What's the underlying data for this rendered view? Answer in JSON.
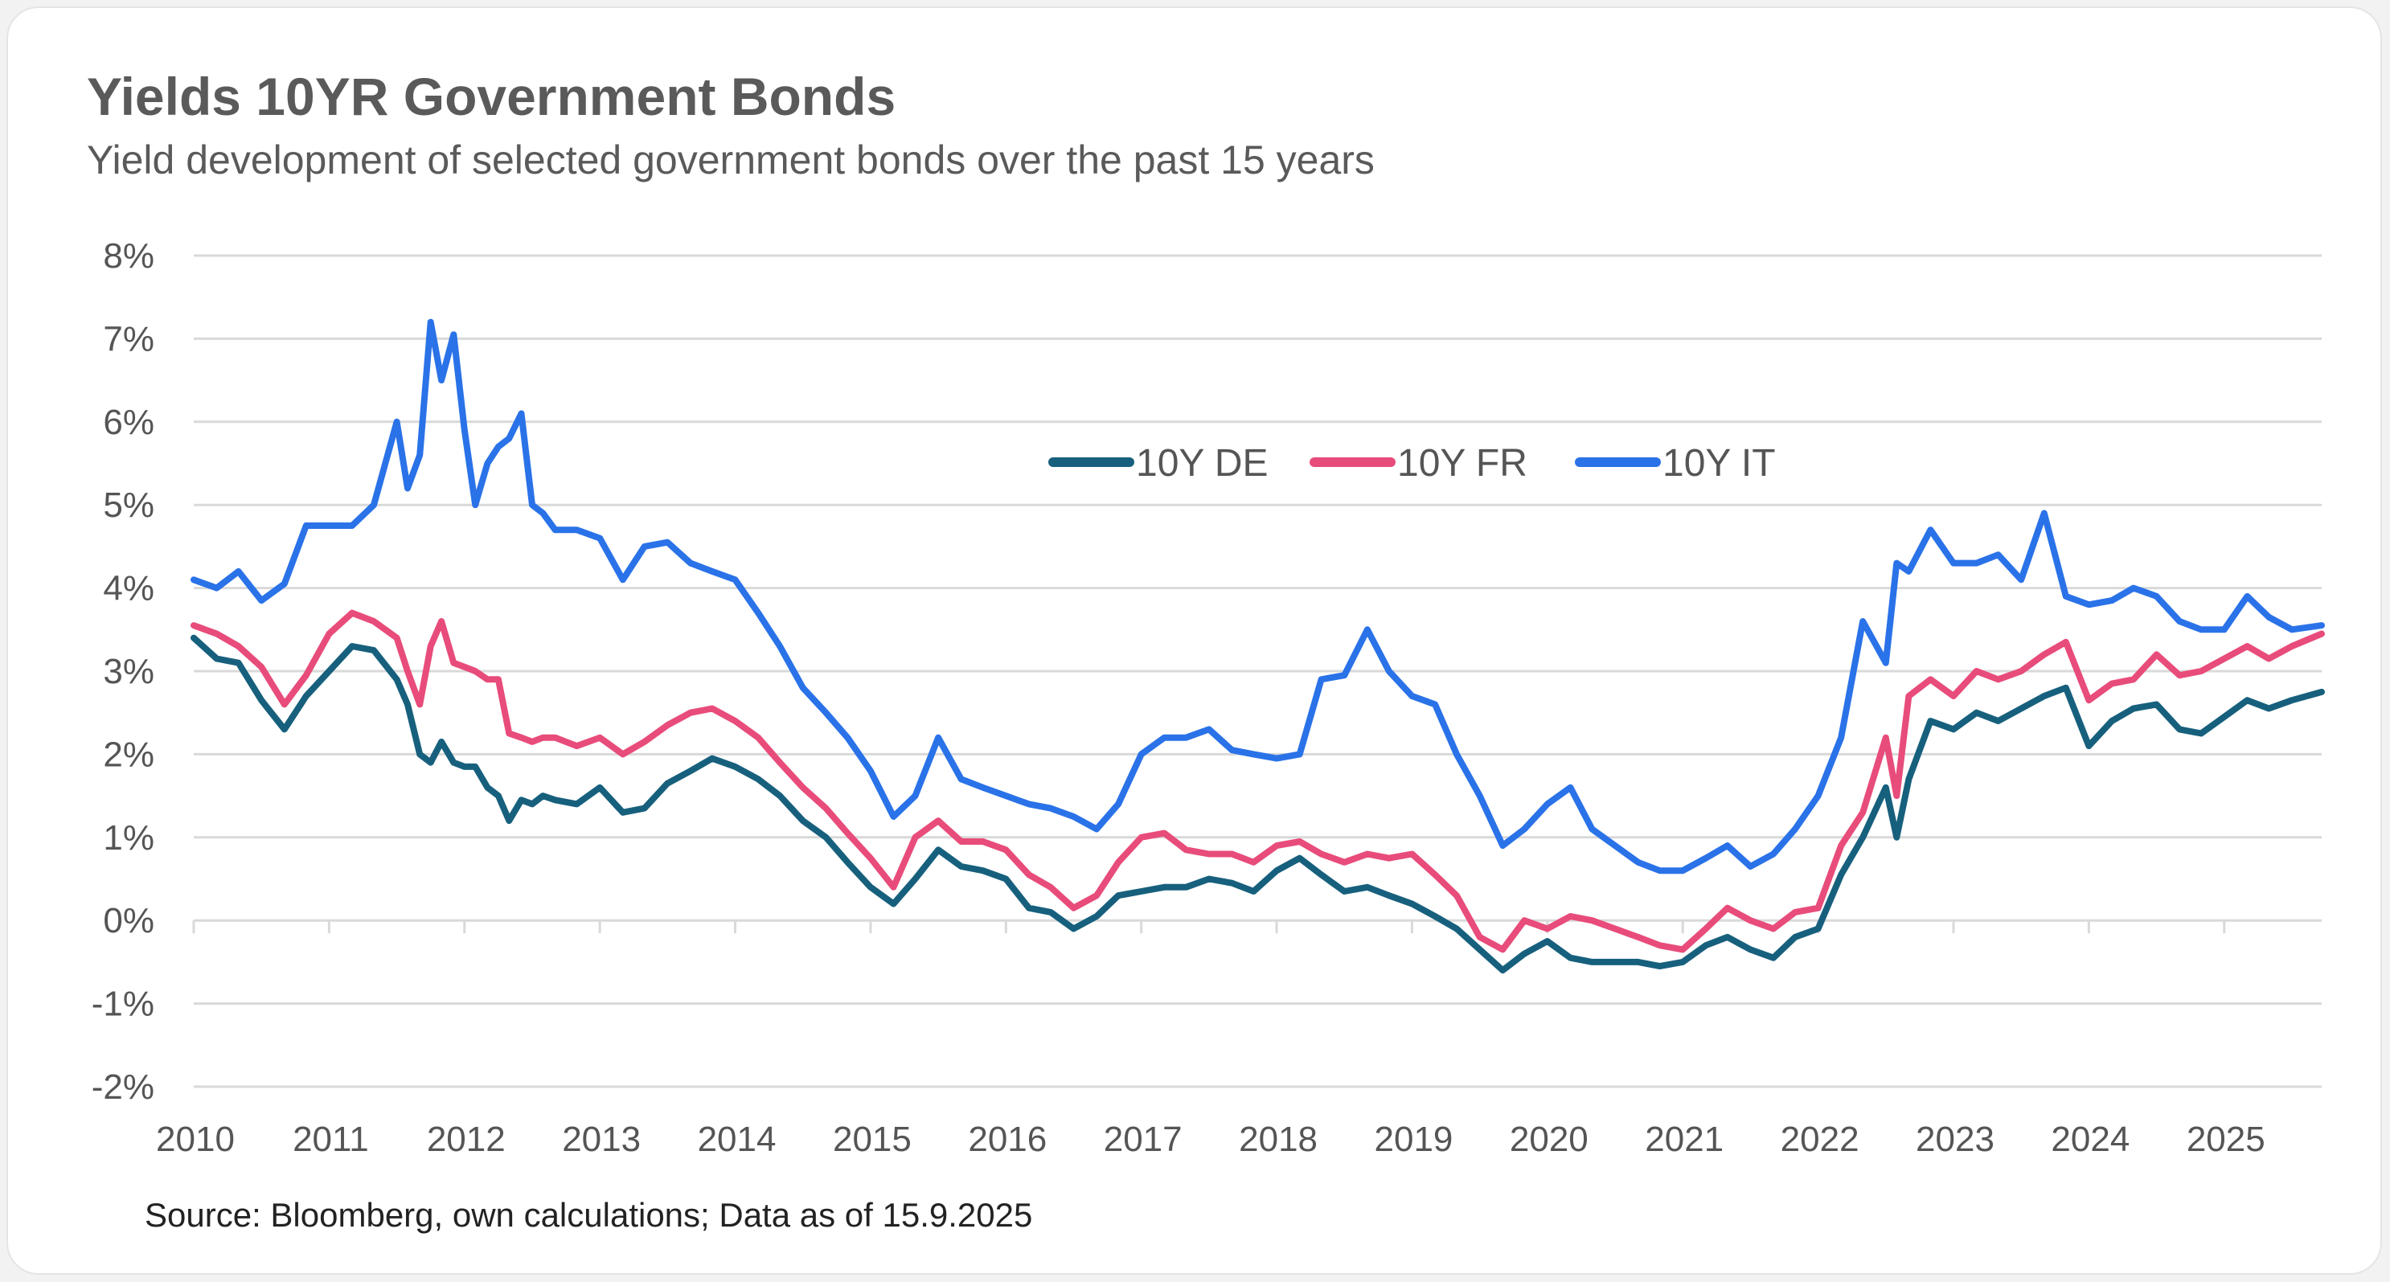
{
  "header": {
    "title": "Yields 10YR Government Bonds",
    "subtitle": "Yield development of selected government bonds over the past 15 years"
  },
  "footer": {
    "source": "Source: Bloomberg, own calculations; Data as of 15.9.2025"
  },
  "chart_data": {
    "type": "line",
    "title": "Yields 10YR Government Bonds",
    "subtitle": "Yield development of selected government bonds over the past 15 years",
    "xlabel": "",
    "ylabel": "",
    "xlim": [
      2010.0,
      2025.72
    ],
    "ylim": [
      -2,
      8
    ],
    "y_ticks": [
      -2,
      -1,
      0,
      1,
      2,
      3,
      4,
      5,
      6,
      7,
      8
    ],
    "y_tick_labels": [
      "-2%",
      "-1%",
      "0%",
      "1%",
      "2%",
      "3%",
      "4%",
      "5%",
      "6%",
      "7%",
      "8%"
    ],
    "x_ticks": [
      2010,
      2011,
      2012,
      2013,
      2014,
      2015,
      2016,
      2017,
      2018,
      2019,
      2020,
      2021,
      2022,
      2023,
      2024,
      2025
    ],
    "x_tick_labels": [
      "2010",
      "2011",
      "2012",
      "2013",
      "2014",
      "2015",
      "2016",
      "2017",
      "2018",
      "2019",
      "2020",
      "2021",
      "2022",
      "2023",
      "2024",
      "2025"
    ],
    "grid": true,
    "legend_position": "top-center",
    "x": [
      2010.0,
      2010.17,
      2010.33,
      2010.5,
      2010.67,
      2010.83,
      2011.0,
      2011.17,
      2011.33,
      2011.5,
      2011.58,
      2011.67,
      2011.75,
      2011.83,
      2011.92,
      2012.0,
      2012.08,
      2012.17,
      2012.25,
      2012.33,
      2012.42,
      2012.5,
      2012.58,
      2012.67,
      2012.83,
      2013.0,
      2013.17,
      2013.33,
      2013.5,
      2013.67,
      2013.83,
      2014.0,
      2014.17,
      2014.33,
      2014.5,
      2014.67,
      2014.83,
      2015.0,
      2015.17,
      2015.33,
      2015.5,
      2015.67,
      2015.83,
      2016.0,
      2016.17,
      2016.33,
      2016.5,
      2016.67,
      2016.83,
      2017.0,
      2017.17,
      2017.33,
      2017.5,
      2017.67,
      2017.83,
      2018.0,
      2018.17,
      2018.33,
      2018.5,
      2018.67,
      2018.83,
      2019.0,
      2019.17,
      2019.33,
      2019.5,
      2019.67,
      2019.83,
      2020.0,
      2020.17,
      2020.33,
      2020.5,
      2020.67,
      2020.83,
      2021.0,
      2021.17,
      2021.33,
      2021.5,
      2021.67,
      2021.83,
      2022.0,
      2022.17,
      2022.33,
      2022.5,
      2022.58,
      2022.67,
      2022.83,
      2023.0,
      2023.17,
      2023.33,
      2023.5,
      2023.67,
      2023.83,
      2024.0,
      2024.17,
      2024.33,
      2024.5,
      2024.67,
      2024.83,
      2025.0,
      2025.17,
      2025.33,
      2025.5,
      2025.72
    ],
    "series": [
      {
        "name": "10Y DE",
        "color": "#17607d",
        "values": [
          3.4,
          3.15,
          3.1,
          2.65,
          2.3,
          2.7,
          3.0,
          3.3,
          3.25,
          2.9,
          2.6,
          2.0,
          1.9,
          2.15,
          1.9,
          1.85,
          1.85,
          1.6,
          1.5,
          1.2,
          1.45,
          1.4,
          1.5,
          1.45,
          1.4,
          1.6,
          1.3,
          1.35,
          1.65,
          1.8,
          1.95,
          1.85,
          1.7,
          1.5,
          1.2,
          1.0,
          0.7,
          0.4,
          0.2,
          0.5,
          0.85,
          0.65,
          0.6,
          0.5,
          0.15,
          0.1,
          -0.1,
          0.05,
          0.3,
          0.35,
          0.4,
          0.4,
          0.5,
          0.45,
          0.35,
          0.6,
          0.75,
          0.55,
          0.35,
          0.4,
          0.3,
          0.2,
          0.05,
          -0.1,
          -0.35,
          -0.6,
          -0.4,
          -0.25,
          -0.45,
          -0.5,
          -0.5,
          -0.5,
          -0.55,
          -0.5,
          -0.3,
          -0.2,
          -0.35,
          -0.45,
          -0.2,
          -0.1,
          0.55,
          1.0,
          1.6,
          1.0,
          1.7,
          2.4,
          2.3,
          2.5,
          2.4,
          2.55,
          2.7,
          2.8,
          2.1,
          2.4,
          2.55,
          2.6,
          2.3,
          2.25,
          2.45,
          2.65,
          2.55,
          2.65,
          2.75
        ]
      },
      {
        "name": "10Y FR",
        "color": "#e84c7a",
        "values": [
          3.55,
          3.45,
          3.3,
          3.05,
          2.6,
          2.95,
          3.45,
          3.7,
          3.6,
          3.4,
          3.0,
          2.6,
          3.3,
          3.6,
          3.1,
          3.05,
          3.0,
          2.9,
          2.9,
          2.25,
          2.2,
          2.15,
          2.2,
          2.2,
          2.1,
          2.2,
          2.0,
          2.15,
          2.35,
          2.5,
          2.55,
          2.4,
          2.2,
          1.9,
          1.6,
          1.35,
          1.05,
          0.75,
          0.4,
          1.0,
          1.2,
          0.95,
          0.95,
          0.85,
          0.55,
          0.4,
          0.15,
          0.3,
          0.7,
          1.0,
          1.05,
          0.85,
          0.8,
          0.8,
          0.7,
          0.9,
          0.95,
          0.8,
          0.7,
          0.8,
          0.75,
          0.8,
          0.55,
          0.3,
          -0.2,
          -0.35,
          0.0,
          -0.1,
          0.05,
          0.0,
          -0.1,
          -0.2,
          -0.3,
          -0.35,
          -0.1,
          0.15,
          0.0,
          -0.1,
          0.1,
          0.15,
          0.9,
          1.3,
          2.2,
          1.5,
          2.7,
          2.9,
          2.7,
          3.0,
          2.9,
          3.0,
          3.2,
          3.35,
          2.65,
          2.85,
          2.9,
          3.2,
          2.95,
          3.0,
          3.15,
          3.3,
          3.15,
          3.3,
          3.45
        ]
      },
      {
        "name": "10Y IT",
        "color": "#2a72e8",
        "values": [
          4.1,
          4.0,
          4.2,
          3.85,
          4.05,
          4.75,
          4.75,
          4.75,
          5.0,
          6.0,
          5.2,
          5.6,
          7.2,
          6.5,
          7.05,
          5.9,
          5.0,
          5.5,
          5.7,
          5.8,
          6.1,
          5.0,
          4.9,
          4.7,
          4.7,
          4.6,
          4.1,
          4.5,
          4.55,
          4.3,
          4.2,
          4.1,
          3.7,
          3.3,
          2.8,
          2.5,
          2.2,
          1.8,
          1.25,
          1.5,
          2.2,
          1.7,
          1.6,
          1.5,
          1.4,
          1.35,
          1.25,
          1.1,
          1.4,
          2.0,
          2.2,
          2.2,
          2.3,
          2.05,
          2.0,
          1.95,
          2.0,
          2.9,
          2.95,
          3.5,
          3.0,
          2.7,
          2.6,
          2.0,
          1.5,
          0.9,
          1.1,
          1.4,
          1.6,
          1.1,
          0.9,
          0.7,
          0.6,
          0.6,
          0.75,
          0.9,
          0.65,
          0.8,
          1.1,
          1.5,
          2.2,
          3.6,
          3.1,
          4.3,
          4.2,
          4.7,
          4.3,
          4.3,
          4.4,
          4.1,
          4.9,
          3.9,
          3.8,
          3.85,
          4.0,
          3.9,
          3.6,
          3.5,
          3.5,
          3.9,
          3.65,
          3.5,
          3.55
        ]
      }
    ]
  }
}
